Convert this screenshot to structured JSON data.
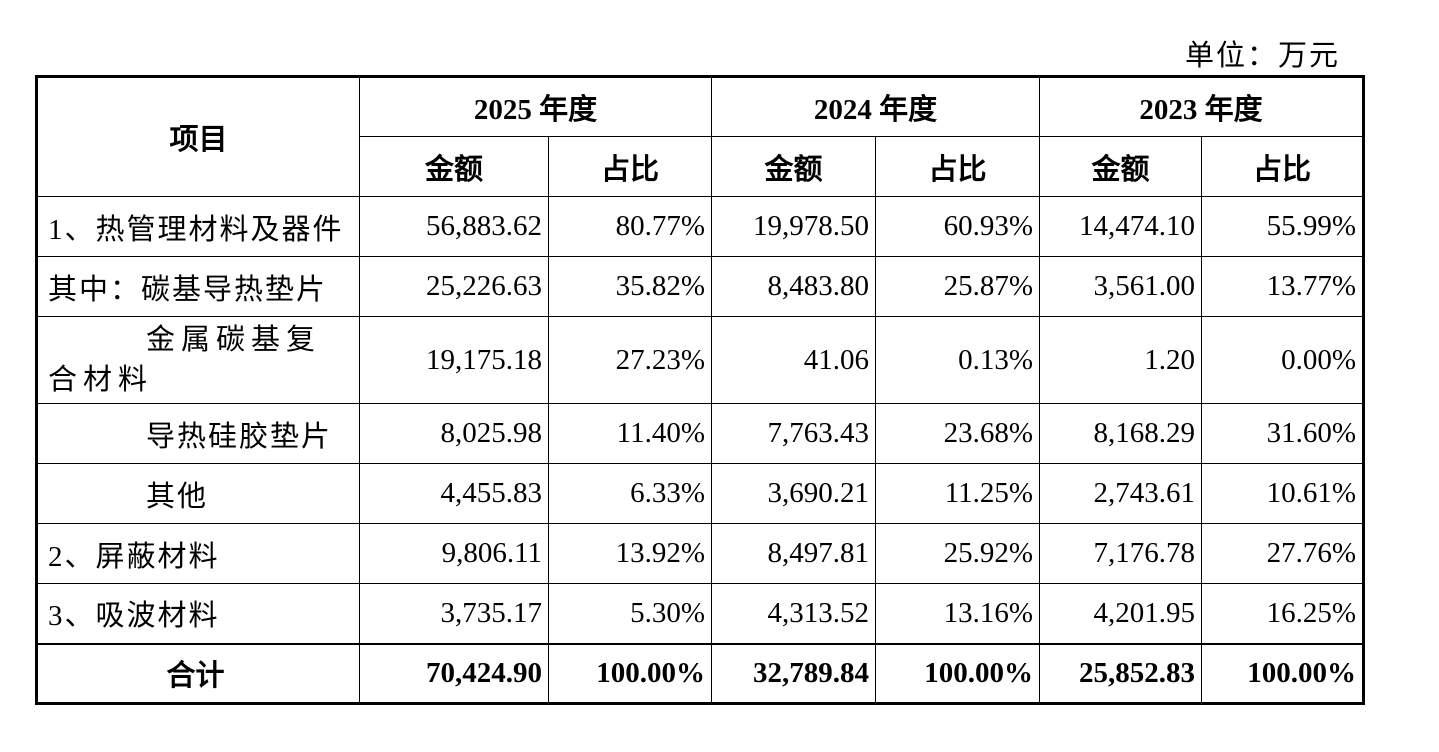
{
  "unit": "单位：万元",
  "table": {
    "item_header": "项目",
    "years": [
      "2025 年度",
      "2024 年度",
      "2023 年度"
    ],
    "amount_header": "金额",
    "share_header": "占比",
    "rows": [
      {
        "label": "1、热管理材料及器件",
        "cells": [
          "56,883.62",
          "80.77%",
          "19,978.50",
          "60.93%",
          "14,474.10",
          "55.99%"
        ]
      },
      {
        "label": "其中：碳基导热垫片",
        "cells": [
          "25,226.63",
          "35.82%",
          "8,483.80",
          "25.87%",
          "3,561.00",
          "13.77%"
        ]
      },
      {
        "label": "金属碳基复合材料",
        "cells": [
          "19,175.18",
          "27.23%",
          "41.06",
          "0.13%",
          "1.20",
          "0.00%"
        ]
      },
      {
        "label": "导热硅胶垫片",
        "cells": [
          "8,025.98",
          "11.40%",
          "7,763.43",
          "23.68%",
          "8,168.29",
          "31.60%"
        ]
      },
      {
        "label": "其他",
        "cells": [
          "4,455.83",
          "6.33%",
          "3,690.21",
          "11.25%",
          "2,743.61",
          "10.61%"
        ]
      },
      {
        "label": "2、屏蔽材料",
        "cells": [
          "9,806.11",
          "13.92%",
          "8,497.81",
          "25.92%",
          "7,176.78",
          "27.76%"
        ]
      },
      {
        "label": "3、吸波材料",
        "cells": [
          "3,735.17",
          "5.30%",
          "4,313.52",
          "13.16%",
          "4,201.95",
          "16.25%"
        ]
      },
      {
        "label": "合计",
        "cells": [
          "70,424.90",
          "100.00%",
          "32,789.84",
          "100.00%",
          "25,852.83",
          "100.00%"
        ]
      }
    ]
  }
}
